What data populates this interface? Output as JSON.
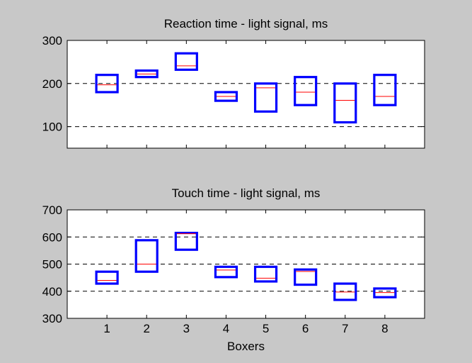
{
  "figure": {
    "background": "#c8c8c8",
    "box_color": "#0000ff",
    "median_color": "#ff0000",
    "grid_color": "#000000"
  },
  "chart_data": [
    {
      "type": "box",
      "title": "Reaction time - light signal, ms",
      "xlabel": "",
      "ylabel": "",
      "categories": [
        "1",
        "2",
        "3",
        "4",
        "5",
        "6",
        "7",
        "8"
      ],
      "xtick_labels_visible": false,
      "ylim": [
        50,
        300
      ],
      "yticks": [
        100,
        200,
        300
      ],
      "grid": "y-dashed",
      "boxes": [
        {
          "low": 180,
          "high": 220,
          "median": 197
        },
        {
          "low": 215,
          "high": 230,
          "median": 222
        },
        {
          "low": 232,
          "high": 270,
          "median": 241
        },
        {
          "low": 160,
          "high": 180,
          "median": 170
        },
        {
          "low": 135,
          "high": 200,
          "median": 190
        },
        {
          "low": 150,
          "high": 215,
          "median": 180
        },
        {
          "low": 110,
          "high": 200,
          "median": 161
        },
        {
          "low": 150,
          "high": 220,
          "median": 170
        }
      ]
    },
    {
      "type": "box",
      "title": "Touch time - light signal, ms",
      "xlabel": "Boxers",
      "ylabel": "",
      "categories": [
        "1",
        "2",
        "3",
        "4",
        "5",
        "6",
        "7",
        "8"
      ],
      "xtick_labels_visible": true,
      "ylim": [
        300,
        700
      ],
      "yticks": [
        300,
        400,
        500,
        600,
        700
      ],
      "grid": "y-dashed",
      "boxes": [
        {
          "low": 428,
          "high": 472,
          "median": 440
        },
        {
          "low": 472,
          "high": 588,
          "median": 500
        },
        {
          "low": 553,
          "high": 615,
          "median": 612
        },
        {
          "low": 452,
          "high": 490,
          "median": 478
        },
        {
          "low": 436,
          "high": 490,
          "median": 448
        },
        {
          "low": 424,
          "high": 480,
          "median": 473
        },
        {
          "low": 368,
          "high": 428,
          "median": 397
        },
        {
          "low": 378,
          "high": 410,
          "median": 395
        }
      ]
    }
  ]
}
